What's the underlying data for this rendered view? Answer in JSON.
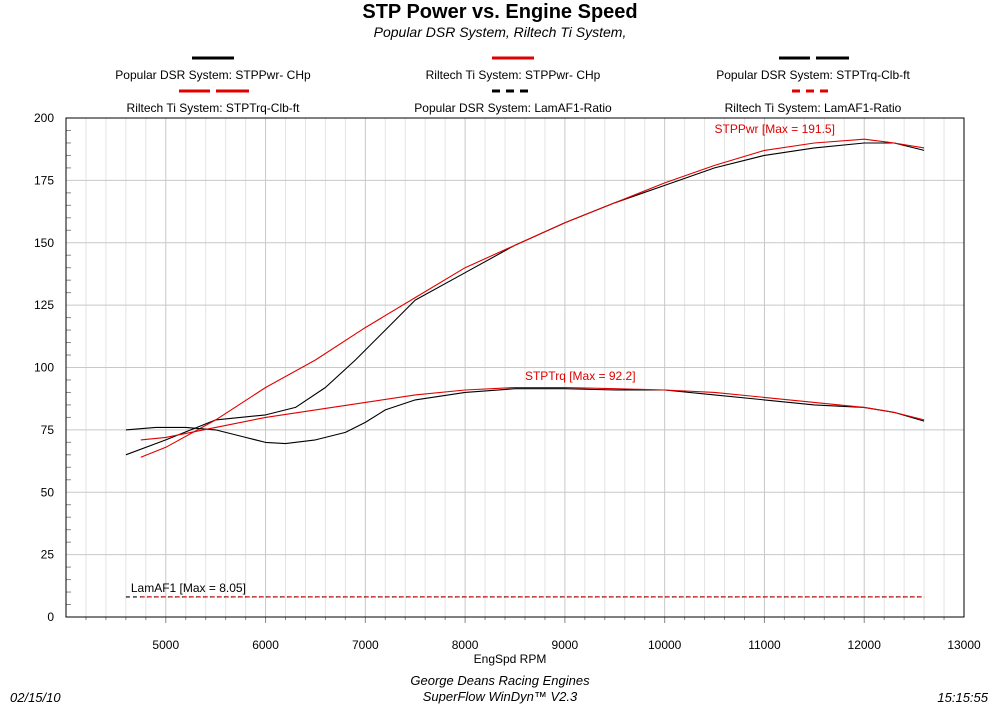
{
  "chart_data": {
    "type": "line",
    "title": "STP  Power vs. Engine Speed",
    "subtitle": "Popular DSR System, Riltech Ti System,",
    "xlabel": "EngSpd  RPM",
    "xlim": [
      4000,
      13000
    ],
    "ylim": [
      0,
      200
    ],
    "xticks": [
      "5000",
      "6000",
      "7000",
      "8000",
      "9000",
      "10000",
      "11000",
      "12000",
      "13000"
    ],
    "yticks": [
      "0",
      "25",
      "50",
      "75",
      "100",
      "125",
      "150",
      "175",
      "200"
    ],
    "grid": true,
    "legend": [
      {
        "label": "Popular DSR System:  STPPwr- CHp",
        "color": "#000000",
        "style": "solid",
        "parts": 1
      },
      {
        "label": "Riltech Ti System:  STPPwr- CHp",
        "color": "#e00000",
        "style": "solid",
        "parts": 1
      },
      {
        "label": "Popular DSR System:  STPTrq-Clb-ft",
        "color": "#000000",
        "style": "solid",
        "parts": 2
      },
      {
        "label": "Riltech Ti System:  STPTrq-Clb-ft",
        "color": "#e00000",
        "style": "solid",
        "parts": 2
      },
      {
        "label": "Popular DSR System:  LamAF1-Ratio",
        "color": "#000000",
        "style": "dashed",
        "parts": 1
      },
      {
        "label": "Riltech Ti System:  LamAF1-Ratio",
        "color": "#e00000",
        "style": "dashed",
        "parts": 1
      }
    ],
    "series": [
      {
        "name": "Popular DSR System:  STPPwr- CHp",
        "color": "#000000",
        "dash": "",
        "x": [
          4600,
          5000,
          5500,
          6000,
          6300,
          6600,
          6900,
          7200,
          7500,
          8000,
          8500,
          9000,
          9500,
          10000,
          10500,
          11000,
          11500,
          12000,
          12300,
          12600
        ],
        "y": [
          65,
          71,
          79,
          81,
          84,
          92,
          103,
          115,
          127,
          138,
          149,
          158,
          166,
          173,
          180,
          185,
          188,
          190,
          190,
          187
        ]
      },
      {
        "name": "Riltech Ti System:  STPPwr- CHp",
        "color": "#e00000",
        "dash": "",
        "x": [
          4750,
          5000,
          5500,
          6000,
          6500,
          7000,
          7500,
          8000,
          8500,
          9000,
          9500,
          10000,
          10500,
          11000,
          11500,
          12000,
          12300,
          12600
        ],
        "y": [
          64,
          68,
          79,
          92,
          103,
          116,
          128,
          140,
          149,
          158,
          166,
          174,
          181,
          187,
          190,
          191.5,
          190,
          188
        ]
      },
      {
        "name": "Popular DSR System:  STPTrq-Clb-ft",
        "color": "#000000",
        "dash": "",
        "x": [
          4600,
          4900,
          5200,
          5500,
          5800,
          6000,
          6200,
          6500,
          6800,
          7000,
          7200,
          7500,
          8000,
          8500,
          9000,
          9500,
          10000,
          10500,
          11000,
          11500,
          12000,
          12300,
          12600
        ],
        "y": [
          75,
          76,
          76,
          75,
          72,
          70,
          69.5,
          71,
          74,
          78,
          83,
          87,
          90,
          91.5,
          91.5,
          91,
          91,
          89,
          87,
          85,
          84,
          82,
          78.5
        ]
      },
      {
        "name": "Riltech Ti System:  STPTrq-Clb-ft",
        "color": "#e00000",
        "dash": "",
        "x": [
          4750,
          5000,
          5500,
          6000,
          6500,
          7000,
          7500,
          8000,
          8500,
          9000,
          9500,
          10000,
          10500,
          11000,
          11500,
          12000,
          12300,
          12600
        ],
        "y": [
          71,
          72,
          76,
          80,
          83,
          86,
          89,
          91,
          92,
          92,
          91.5,
          91,
          90,
          88,
          86,
          84,
          82,
          79
        ]
      },
      {
        "name": "Popular DSR System:  LamAF1-Ratio",
        "color": "#000000",
        "dash": "4,3",
        "x": [
          4600,
          12600
        ],
        "y": [
          8.05,
          8.05
        ]
      },
      {
        "name": "Riltech Ti System:  LamAF1-Ratio",
        "color": "#e00000",
        "dash": "4,3",
        "x": [
          4750,
          12600
        ],
        "y": [
          8.05,
          8.05
        ]
      }
    ],
    "annotations": [
      {
        "text": "STPPwr [Max = 191.5]",
        "x": 10500,
        "y": 194,
        "color": "#e00000"
      },
      {
        "text": "STPTrq [Max = 92.2]",
        "x": 8600,
        "y": 95,
        "color": "#e00000"
      },
      {
        "text": "LamAF1 [Max = 8.05]",
        "x": 4650,
        "y": 10,
        "color": "#000000"
      }
    ]
  },
  "footer": {
    "date": "02/15/10",
    "line1": "George Deans Racing Engines",
    "line2": "SuperFlow WinDyn™ V2.3",
    "time": "15:15:55"
  }
}
